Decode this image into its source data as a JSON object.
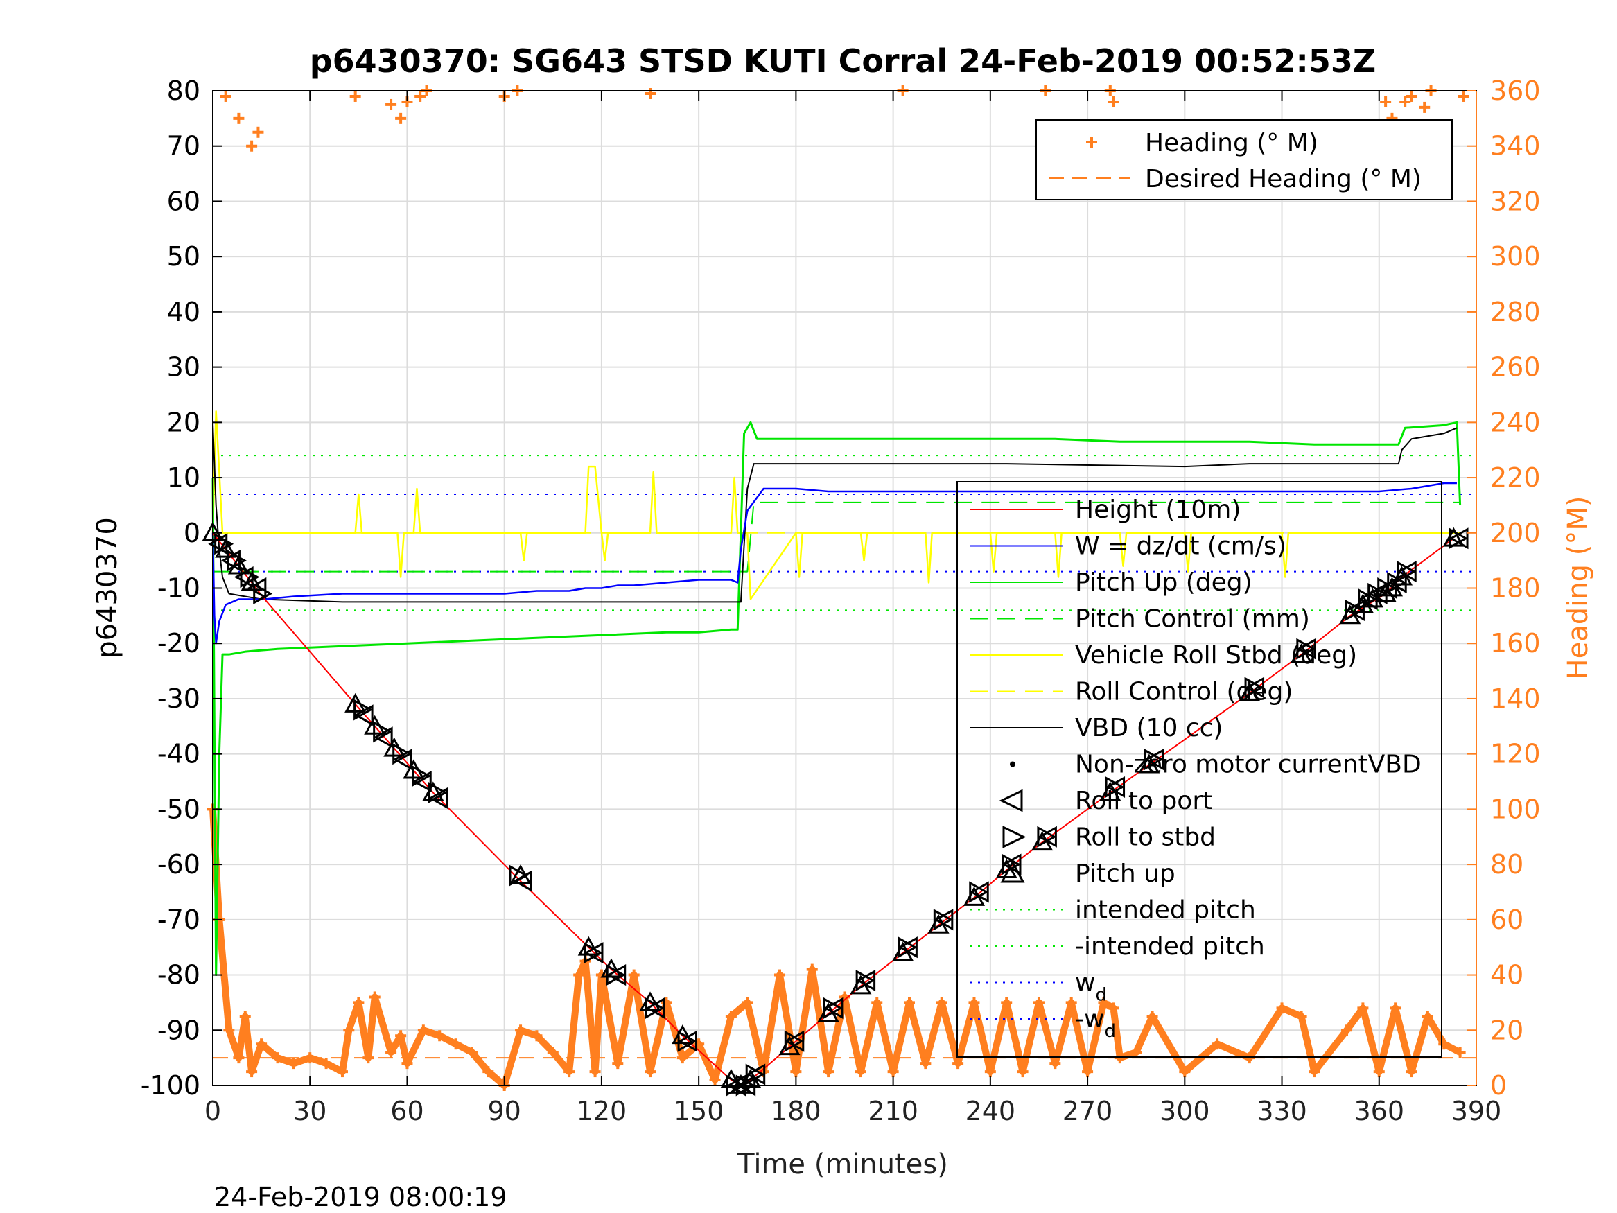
{
  "chart_data": {
    "type": "line",
    "title": "p6430370: SG643 STSD KUTI Corral 24-Feb-2019 00:52:53Z",
    "xlabel": "Time (minutes)",
    "ylabel": "p6430370",
    "y2label": "Heading (°M)",
    "footer": "24-Feb-2019 08:00:19",
    "xlim": [
      0,
      390
    ],
    "ylim": [
      -100,
      80
    ],
    "y2lim": [
      0,
      360
    ],
    "xticks": [
      0,
      30,
      60,
      90,
      120,
      150,
      180,
      210,
      240,
      270,
      300,
      330,
      360,
      390
    ],
    "yticks": [
      -100,
      -90,
      -80,
      -70,
      -60,
      -50,
      -40,
      -30,
      -20,
      -10,
      0,
      10,
      20,
      30,
      40,
      50,
      60,
      70,
      80
    ],
    "y2ticks": [
      0,
      20,
      40,
      60,
      80,
      100,
      120,
      140,
      160,
      180,
      200,
      220,
      240,
      260,
      280,
      300,
      320,
      340,
      360
    ],
    "grid": true,
    "colors": {
      "height": "#ff0000",
      "w": "#0000ff",
      "pitch": "#00e600",
      "roll": "#ffff00",
      "vbd": "#000000",
      "heading": "#ff7f1f",
      "markers": "#000000"
    },
    "legend_heading": {
      "placement": "top-right",
      "entries": [
        "Heading (° M)",
        "Desired Heading (° M)"
      ]
    },
    "legend_main": {
      "placement": "lower-right",
      "entries": [
        "Height (10m)",
        "W = dz/dt (cm/s)",
        "Pitch Up (deg)",
        "Pitch Control (mm)",
        "Vehicle Roll Stbd (deg)",
        "Roll Control (deg)",
        "VBD (10 cc)",
        "Non-zero motor currentVBD",
        "Roll to port",
        "Roll to stbd",
        "Pitch up",
        "intended pitch",
        "-intended pitch",
        "w",
        "-w"
      ],
      "subscript": "d"
    },
    "series": [
      {
        "name": "Height (10m)",
        "axis": "left",
        "x": [
          0,
          4,
          8,
          12,
          16,
          44,
          50,
          56,
          62,
          68,
          95,
          116,
          123,
          135,
          145,
          160,
          163,
          166,
          178,
          190,
          200,
          213,
          224,
          235,
          245,
          256,
          277,
          289,
          320,
          336,
          351,
          362,
          367,
          383
        ],
        "y": [
          0,
          -3,
          -6,
          -9,
          -12,
          -31,
          -35,
          -39,
          -43,
          -47,
          -63,
          -75,
          -79,
          -85,
          -91,
          -99,
          -100,
          -99,
          -93,
          -87,
          -82,
          -76,
          -71,
          -66,
          -61,
          -56,
          -47,
          -42,
          -29,
          -22,
          -15,
          -11,
          -8,
          -1
        ]
      },
      {
        "name": "W = dz/dt (cm/s)",
        "axis": "left",
        "x": [
          0,
          0.5,
          1,
          2,
          4,
          8,
          12,
          16,
          25,
          40,
          60,
          75,
          90,
          100,
          110,
          115,
          120,
          125,
          130,
          140,
          150,
          160,
          162,
          163,
          165,
          170,
          175,
          180,
          190,
          200,
          210,
          220,
          230,
          240,
          250,
          260,
          270,
          280,
          290,
          300,
          310,
          320,
          330,
          340,
          350,
          360,
          370,
          380,
          384
        ],
        "y": [
          0,
          -15,
          -20,
          -16,
          -13,
          -12,
          -12,
          -12,
          -11.5,
          -11,
          -11,
          -11,
          -11,
          -10.5,
          -10.5,
          -10,
          -10,
          -9.5,
          -9.5,
          -9,
          -8.5,
          -8.5,
          -9,
          -3,
          4,
          8,
          8,
          8,
          7.5,
          7.5,
          7.5,
          7.5,
          7.5,
          7.5,
          7.5,
          7.5,
          7.5,
          7.5,
          7.5,
          7.5,
          7.5,
          7.5,
          7.5,
          7.5,
          7.5,
          7.5,
          8,
          9,
          9
        ]
      },
      {
        "name": "Pitch Up (deg)",
        "axis": "left",
        "x": [
          0,
          1,
          2,
          3,
          4,
          5,
          10,
          20,
          40,
          60,
          80,
          100,
          120,
          140,
          150,
          160,
          162,
          164,
          166,
          168,
          170,
          180,
          200,
          220,
          240,
          260,
          280,
          300,
          320,
          340,
          360,
          366,
          368,
          380,
          384,
          385
        ],
        "y": [
          10,
          -80,
          -40,
          -22,
          -22,
          -22,
          -21.5,
          -21,
          -20.5,
          -20,
          -19.5,
          -19,
          -18.5,
          -18,
          -18,
          -17.5,
          -17.5,
          18,
          20,
          17,
          17,
          17,
          17,
          17,
          17,
          17,
          16.5,
          16.5,
          16.5,
          16,
          16,
          16,
          19,
          19.5,
          20,
          5
        ]
      },
      {
        "name": "Pitch Control (mm)",
        "axis": "left",
        "x": [
          0,
          3,
          165,
          167,
          385
        ],
        "y": [
          -7,
          -7,
          -7,
          5.5,
          5.5
        ]
      },
      {
        "name": "Vehicle Roll Stbd (deg)",
        "axis": "left",
        "x": [
          0,
          1,
          3,
          5,
          44,
          45,
          46,
          57,
          58,
          59,
          62,
          63,
          64,
          95,
          96,
          97,
          115,
          116,
          118,
          120,
          121,
          122,
          135,
          136,
          137,
          150,
          160,
          161,
          162,
          165,
          166,
          180,
          181,
          182,
          200,
          201,
          202,
          220,
          221,
          222,
          240,
          241,
          242,
          260,
          261,
          262,
          280,
          281,
          282,
          300,
          301,
          302,
          330,
          331,
          332,
          360,
          380,
          385
        ],
        "y": [
          0,
          22,
          0,
          0,
          0,
          7,
          0,
          0,
          -8,
          0,
          0,
          8,
          0,
          0,
          -5,
          0,
          0,
          12,
          12,
          0,
          -5,
          0,
          0,
          11,
          0,
          0,
          0,
          10,
          0,
          0,
          -12,
          0,
          -8,
          0,
          0,
          -5,
          0,
          0,
          -9,
          0,
          0,
          -7,
          0,
          0,
          -8,
          0,
          0,
          -6,
          0,
          0,
          -7,
          0,
          0,
          -8,
          0,
          0,
          0,
          0
        ]
      },
      {
        "name": "Roll Control (deg)",
        "axis": "left",
        "x": [
          0,
          385
        ],
        "y": [
          0,
          0
        ]
      },
      {
        "name": "VBD (10 cc)",
        "axis": "left",
        "x": [
          0,
          1,
          2,
          3,
          5,
          15,
          40,
          90,
          115,
          116,
          160,
          162,
          163,
          165,
          167,
          170,
          200,
          240,
          245,
          300,
          320,
          366,
          367,
          370,
          380,
          384
        ],
        "y": [
          20,
          5,
          -3,
          -8,
          -11,
          -12,
          -12.5,
          -12.5,
          -12.5,
          -12.5,
          -12.5,
          -12.5,
          -12.5,
          8,
          12.5,
          12.5,
          12.5,
          12.5,
          12.5,
          12,
          12.5,
          12.5,
          15,
          17,
          18,
          19
        ]
      },
      {
        "name": "intended pitch",
        "axis": "left",
        "x": [
          0,
          390
        ],
        "y": [
          14,
          14
        ]
      },
      {
        "name": "-intended pitch",
        "axis": "left",
        "x": [
          0,
          390
        ],
        "y": [
          -14,
          -14
        ]
      },
      {
        "name": "w",
        "axis": "left",
        "x": [
          0,
          390
        ],
        "y": [
          7,
          7
        ]
      },
      {
        "name": "-w",
        "axis": "left",
        "x": [
          0,
          390
        ],
        "y": [
          -7,
          -7
        ]
      },
      {
        "name": "Heading (° M)",
        "axis": "right",
        "x": [
          0,
          2,
          5,
          8,
          10,
          12,
          15,
          20,
          25,
          30,
          35,
          40,
          42,
          45,
          48,
          50,
          55,
          58,
          60,
          65,
          70,
          75,
          80,
          85,
          90,
          95,
          100,
          105,
          110,
          113,
          115,
          118,
          120,
          125,
          130,
          135,
          140,
          145,
          150,
          155,
          160,
          165,
          170,
          175,
          180,
          185,
          190,
          195,
          200,
          205,
          210,
          215,
          220,
          225,
          230,
          235,
          240,
          245,
          250,
          255,
          260,
          265,
          270,
          275,
          278,
          280,
          285,
          290,
          300,
          310,
          320,
          330,
          336,
          340,
          350,
          355,
          360,
          365,
          370,
          375,
          380,
          385
        ],
        "y": [
          100,
          60,
          20,
          10,
          25,
          5,
          15,
          10,
          8,
          10,
          8,
          5,
          20,
          30,
          10,
          32,
          12,
          18,
          8,
          20,
          18,
          15,
          12,
          5,
          0,
          20,
          18,
          12,
          5,
          40,
          45,
          5,
          40,
          8,
          40,
          5,
          30,
          10,
          15,
          2,
          25,
          30,
          5,
          40,
          5,
          42,
          5,
          32,
          5,
          30,
          5,
          30,
          8,
          30,
          8,
          30,
          5,
          30,
          5,
          30,
          8,
          30,
          5,
          30,
          28,
          10,
          12,
          25,
          5,
          15,
          10,
          28,
          25,
          5,
          20,
          28,
          5,
          28,
          5,
          25,
          15,
          12
        ]
      },
      {
        "name": "Desired Heading (° M)",
        "axis": "right",
        "x": [
          0,
          390
        ],
        "y": [
          10,
          10
        ]
      }
    ],
    "heading_top_points": [
      [
        4,
        358
      ],
      [
        8,
        350
      ],
      [
        12,
        340
      ],
      [
        14,
        345
      ],
      [
        44,
        358
      ],
      [
        55,
        355
      ],
      [
        58,
        350
      ],
      [
        60,
        356
      ],
      [
        64,
        358
      ],
      [
        66,
        360
      ],
      [
        90,
        358
      ],
      [
        94,
        360
      ],
      [
        135,
        359
      ],
      [
        213,
        360
      ],
      [
        257,
        360
      ],
      [
        277,
        360
      ],
      [
        278,
        356
      ],
      [
        362,
        356
      ],
      [
        364,
        350
      ],
      [
        368,
        356
      ],
      [
        370,
        358
      ],
      [
        374,
        354
      ],
      [
        376,
        360
      ],
      [
        386,
        358
      ]
    ],
    "markers_up": [
      [
        0,
        0
      ],
      [
        4,
        -3
      ],
      [
        8,
        -6
      ],
      [
        12,
        -9
      ],
      [
        44,
        -31
      ],
      [
        50,
        -35
      ],
      [
        56,
        -39
      ],
      [
        62,
        -43
      ],
      [
        68,
        -47
      ],
      [
        95,
        -62
      ],
      [
        116,
        -75
      ],
      [
        123,
        -79
      ],
      [
        135,
        -85
      ],
      [
        145,
        -91
      ],
      [
        160,
        -99
      ],
      [
        163,
        -100
      ],
      [
        166,
        -99
      ],
      [
        178,
        -93
      ],
      [
        190,
        -87
      ],
      [
        200,
        -82
      ],
      [
        213,
        -76
      ],
      [
        224,
        -71
      ],
      [
        235,
        -66
      ],
      [
        245,
        -61
      ],
      [
        256,
        -56
      ],
      [
        277,
        -47
      ],
      [
        289,
        -42
      ],
      [
        320,
        -29
      ],
      [
        336,
        -22
      ],
      [
        351,
        -15
      ],
      [
        355,
        -13
      ],
      [
        358,
        -12
      ],
      [
        362,
        -11
      ],
      [
        364,
        -10
      ],
      [
        367,
        -8
      ],
      [
        383,
        -1
      ]
    ],
    "markers_port": [
      [
        2,
        -2
      ],
      [
        6,
        -5
      ],
      [
        10,
        -8
      ],
      [
        14,
        -10
      ],
      [
        47,
        -33
      ],
      [
        53,
        -37
      ],
      [
        59,
        -41
      ],
      [
        65,
        -45
      ],
      [
        70,
        -48
      ],
      [
        96,
        -63
      ],
      [
        118,
        -76
      ],
      [
        125,
        -80
      ],
      [
        137,
        -86
      ],
      [
        147,
        -92
      ],
      [
        162,
        -100
      ],
      [
        165,
        -100
      ],
      [
        168,
        -98
      ],
      [
        180,
        -92
      ],
      [
        192,
        -86
      ],
      [
        202,
        -81
      ],
      [
        215,
        -75
      ],
      [
        226,
        -70
      ],
      [
        237,
        -65
      ],
      [
        247,
        -60
      ],
      [
        258,
        -55
      ],
      [
        279,
        -46
      ],
      [
        291,
        -41
      ],
      [
        322,
        -28
      ],
      [
        338,
        -21
      ],
      [
        353,
        -14
      ],
      [
        357,
        -12
      ],
      [
        360,
        -11
      ],
      [
        363,
        -10
      ],
      [
        366,
        -9
      ],
      [
        369,
        -7
      ],
      [
        385,
        -1
      ]
    ],
    "markers_stbd": [
      [
        3,
        -2
      ],
      [
        7,
        -5
      ],
      [
        11,
        -8
      ],
      [
        15,
        -11
      ],
      [
        46,
        -32
      ],
      [
        52,
        -36
      ],
      [
        58,
        -40
      ],
      [
        64,
        -44
      ],
      [
        69,
        -47
      ],
      [
        94,
        -62
      ],
      [
        117,
        -76
      ],
      [
        124,
        -80
      ],
      [
        136,
        -86
      ],
      [
        146,
        -92
      ],
      [
        161,
        -100
      ],
      [
        164,
        -100
      ],
      [
        167,
        -98
      ],
      [
        179,
        -92
      ],
      [
        191,
        -86
      ],
      [
        201,
        -81
      ],
      [
        214,
        -75
      ],
      [
        225,
        -70
      ],
      [
        236,
        -65
      ],
      [
        246,
        -60
      ],
      [
        257,
        -55
      ],
      [
        278,
        -46
      ],
      [
        290,
        -41
      ],
      [
        321,
        -28
      ],
      [
        337,
        -21
      ],
      [
        352,
        -14
      ],
      [
        356,
        -12
      ],
      [
        359,
        -11
      ],
      [
        362,
        -10
      ],
      [
        365,
        -9
      ],
      [
        368,
        -7
      ],
      [
        384,
        -1
      ]
    ]
  }
}
